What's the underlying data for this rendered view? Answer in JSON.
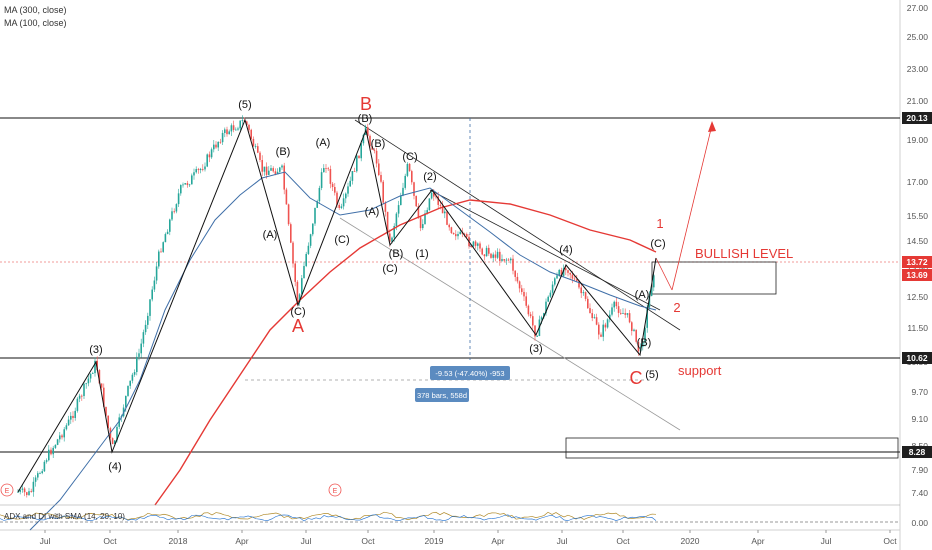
{
  "legend": {
    "ma300": "MA (300, close)",
    "ma100": "MA (100, close)"
  },
  "adx_label": "ADX and DI with SMA (14, 20, 10)",
  "colors": {
    "candle_up": "#26a69a",
    "candle_down": "#ef5350",
    "ma300": "#e53935",
    "ma100": "#3f6fa8",
    "accent": "#e53935"
  },
  "chart_data": {
    "type": "candlestick",
    "y_axis": {
      "scale": "log",
      "ticks": [
        "27.00",
        "25.00",
        "23.00",
        "21.00",
        "19.00",
        "17.00",
        "15.50",
        "14.50",
        "13.50",
        "12.50",
        "11.50",
        "10.50",
        "9.70",
        "9.10",
        "8.50",
        "7.90",
        "7.40"
      ],
      "adx_ticks": [
        "0.00"
      ],
      "price_tags": [
        {
          "value": "20.13",
          "style": "dark"
        },
        {
          "value": "13.72",
          "style": "red"
        },
        {
          "value": "13.69",
          "style": "red"
        },
        {
          "value": "10.62",
          "style": "dark"
        },
        {
          "value": "8.28",
          "style": "dark"
        }
      ]
    },
    "x_axis": {
      "ticks": [
        "Jul",
        "Oct",
        "2018",
        "Apr",
        "Jul",
        "Oct",
        "2019",
        "Apr",
        "Jul",
        "Oct",
        "2020",
        "Apr",
        "Jul",
        "Oct"
      ]
    },
    "series": [
      {
        "name": "MA (300, close)",
        "color": "#e53935"
      },
      {
        "name": "MA (100, close)",
        "color": "#3f6fa8"
      }
    ],
    "wave_labels": [
      "(3)",
      "(4)",
      "(5)",
      "(B)",
      "(A)",
      "(C)",
      "(A)",
      "(C)",
      "(B)",
      "(C)",
      "(B)",
      "(A)",
      "(B)",
      "(C)",
      "(2)",
      "(1)",
      "(4)",
      "(3)",
      "(A)",
      "(B)",
      "(C)",
      "(5)"
    ],
    "annotations": {
      "big_a": "A",
      "big_b": "B",
      "big_c": "C",
      "wave_1": "1",
      "wave_2": "2",
      "bullish": "BULLISH LEVEL",
      "support": "support",
      "measure_change": "-9.53 (-47.40%) -953",
      "measure_bars": "378 bars, 558d"
    },
    "grid": false
  }
}
